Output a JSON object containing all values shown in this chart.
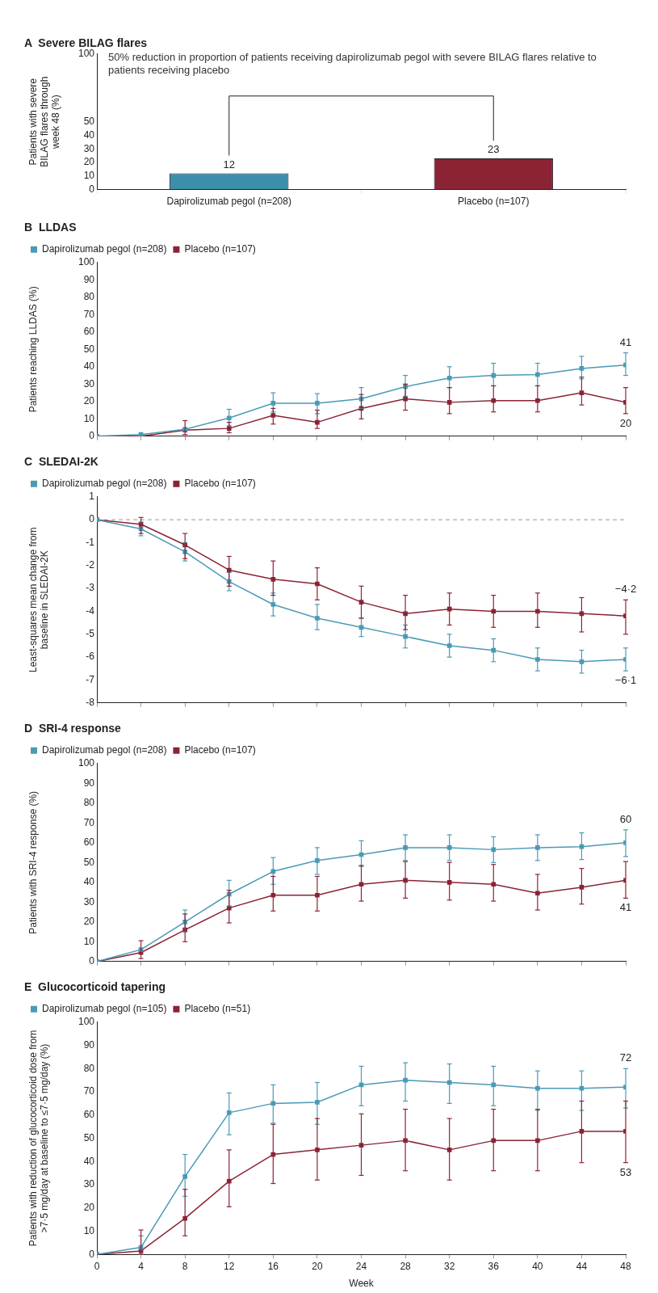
{
  "chart_data": [
    {
      "type": "bar",
      "title": "A  Severe BILAG flares",
      "ylabel": "Patients with severe BILAG flares through week 48 (%)",
      "categories": [
        "Dapirolizumab pegol (n=208)",
        "Placebo (n=107)"
      ],
      "values": [
        12,
        23
      ],
      "colors": [
        "#3b8fab",
        "#8b2335"
      ],
      "data_labels": true,
      "ylim": [
        0,
        100
      ],
      "yticks": [
        0,
        10,
        20,
        30,
        40,
        50,
        100
      ],
      "grid": false,
      "legend": false,
      "annotations": [
        "50% reduction in proportion of patients receiving dapirolizumab pegol with severe BILAG flares relative to patients receiving placebo"
      ]
    },
    {
      "type": "line",
      "title": "B  LLDAS",
      "ylabel": "Patients reaching LLDAS (%)",
      "x": [
        0,
        4,
        8,
        12,
        16,
        20,
        24,
        28,
        32,
        36,
        40,
        44,
        48
      ],
      "xlim": [
        0,
        48
      ],
      "xticks": [
        0,
        4,
        8,
        12,
        16,
        20,
        24,
        28,
        32,
        36,
        40,
        44,
        48
      ],
      "ylim": [
        0,
        100
      ],
      "yticks": [
        0,
        10,
        20,
        30,
        40,
        50,
        60,
        70,
        80,
        90,
        100
      ],
      "tick_labels": "y",
      "grid": false,
      "legend": "top left",
      "marker": "square",
      "line_style": "solid",
      "series": [
        {
          "name": "Dapirolizumab pegol (n=208)",
          "color": "#4a9ab5",
          "values": [
            0,
            1,
            4,
            10.5,
            19,
            19,
            21.5,
            28.5,
            33.5,
            35,
            35.5,
            39,
            41
          ],
          "errors": [
            null,
            null,
            null,
            [
              6,
              15.5
            ],
            [
              14,
              25
            ],
            [
              13,
              24.5
            ],
            [
              16,
              28
            ],
            [
              23,
              35
            ],
            [
              28,
              40
            ],
            [
              29,
              42
            ],
            [
              29,
              42
            ],
            [
              33,
              46
            ],
            [
              35,
              48
            ]
          ],
          "value_labels": [
            null,
            null,
            null,
            null,
            null,
            null,
            null,
            null,
            null,
            null,
            null,
            null,
            "41"
          ]
        },
        {
          "name": "Placebo (n=107)",
          "color": "#8b2335",
          "values": [
            0,
            0,
            3.5,
            4.5,
            12,
            8,
            16,
            21.5,
            19.5,
            20.5,
            20.5,
            25,
            19.5
          ],
          "errors": [
            null,
            null,
            [
              1,
              9
            ],
            [
              2,
              8
            ],
            [
              7,
              16
            ],
            [
              4.5,
              15
            ],
            [
              10,
              24
            ],
            [
              15,
              30
            ],
            [
              13,
              28
            ],
            [
              14,
              29
            ],
            [
              14,
              29
            ],
            [
              18,
              34
            ],
            [
              13,
              28
            ]
          ],
          "value_labels": [
            null,
            null,
            null,
            null,
            null,
            null,
            null,
            null,
            null,
            null,
            null,
            null,
            "20"
          ]
        }
      ]
    },
    {
      "type": "line",
      "title": "C  SLEDAI-2K",
      "ylabel": "Least-squares mean change from baseline in SLEDAI-2K",
      "x": [
        0,
        4,
        8,
        12,
        16,
        20,
        24,
        28,
        32,
        36,
        40,
        44,
        48
      ],
      "xlim": [
        0,
        48
      ],
      "xticks": [
        0,
        4,
        8,
        12,
        16,
        20,
        24,
        28,
        32,
        36,
        40,
        44,
        48
      ],
      "ylim": [
        -8,
        1
      ],
      "yticks": [
        -8,
        -7,
        -6,
        -5,
        -4,
        -3,
        -2,
        -1,
        0,
        1
      ],
      "tick_labels": "y",
      "grid": false,
      "legend": "top left",
      "marker": "square",
      "line_style": "solid",
      "ref_lines": [
        {
          "axis": "y",
          "value": 0,
          "color": "#999999",
          "line_style": "dashed"
        }
      ],
      "series": [
        {
          "name": "Dapirolizumab pegol (n=208)",
          "color": "#4a9ab5",
          "values": [
            0,
            -0.4,
            -1.4,
            -2.7,
            -3.7,
            -4.3,
            -4.7,
            -5.1,
            -5.5,
            -5.7,
            -6.1,
            -6.2,
            -6.1
          ],
          "errors": [
            null,
            [
              -0.7,
              -0.1
            ],
            [
              -1.8,
              -1.0
            ],
            [
              -3.1,
              -2.3
            ],
            [
              -4.2,
              -3.2
            ],
            [
              -4.8,
              -3.7
            ],
            [
              -5.1,
              -4.3
            ],
            [
              -5.6,
              -4.6
            ],
            [
              -6.0,
              -5.0
            ],
            [
              -6.2,
              -5.2
            ],
            [
              -6.6,
              -5.6
            ],
            [
              -6.7,
              -5.7
            ],
            [
              -6.6,
              -5.6
            ]
          ],
          "value_labels": [
            null,
            null,
            null,
            null,
            null,
            null,
            null,
            null,
            null,
            null,
            null,
            null,
            "−6·1"
          ]
        },
        {
          "name": "Placebo (n=107)",
          "color": "#8b2335",
          "values": [
            0,
            -0.2,
            -1.1,
            -2.2,
            -2.6,
            -2.8,
            -3.6,
            -4.1,
            -3.9,
            -4.0,
            -4.0,
            -4.1,
            -4.2
          ],
          "errors": [
            null,
            [
              -0.6,
              0.1
            ],
            [
              -1.7,
              -0.6
            ],
            [
              -2.9,
              -1.6
            ],
            [
              -3.3,
              -1.8
            ],
            [
              -3.5,
              -2.1
            ],
            [
              -4.3,
              -2.9
            ],
            [
              -4.8,
              -3.3
            ],
            [
              -4.6,
              -3.2
            ],
            [
              -4.7,
              -3.3
            ],
            [
              -4.7,
              -3.2
            ],
            [
              -4.9,
              -3.4
            ],
            [
              -5.0,
              -3.5
            ]
          ],
          "value_labels": [
            null,
            null,
            null,
            null,
            null,
            null,
            null,
            null,
            null,
            null,
            null,
            null,
            "−4·2"
          ]
        }
      ]
    },
    {
      "type": "line",
      "title": "D  SRI-4 response",
      "ylabel": "Patients with SRI-4 response (%)",
      "x": [
        0,
        4,
        8,
        12,
        16,
        20,
        24,
        28,
        32,
        36,
        40,
        44,
        48
      ],
      "xlim": [
        0,
        48
      ],
      "xticks": [
        0,
        4,
        8,
        12,
        16,
        20,
        24,
        28,
        32,
        36,
        40,
        44,
        48
      ],
      "ylim": [
        0,
        100
      ],
      "yticks": [
        0,
        10,
        20,
        30,
        40,
        50,
        60,
        70,
        80,
        90,
        100
      ],
      "tick_labels": "y",
      "grid": false,
      "legend": "top left",
      "marker": "square",
      "line_style": "solid",
      "series": [
        {
          "name": "Dapirolizumab pegol (n=208)",
          "color": "#4a9ab5",
          "values": [
            0,
            6,
            20,
            34,
            45.5,
            51,
            54,
            57.5,
            57.5,
            56.5,
            57.5,
            58,
            60
          ],
          "errors": [
            null,
            null,
            [
              15,
              26
            ],
            [
              28,
              41
            ],
            [
              39,
              52.5
            ],
            [
              44,
              57.5
            ],
            [
              48,
              61
            ],
            [
              51,
              64
            ],
            [
              51,
              64
            ],
            [
              50,
              63
            ],
            [
              51,
              64
            ],
            [
              51.5,
              65
            ],
            [
              53,
              66.5
            ]
          ],
          "value_labels": [
            null,
            null,
            null,
            null,
            null,
            null,
            null,
            null,
            null,
            null,
            null,
            null,
            "60"
          ]
        },
        {
          "name": "Placebo (n=107)",
          "color": "#8b2335",
          "values": [
            0,
            4.5,
            16,
            27,
            33.5,
            33.5,
            39,
            41,
            40,
            39,
            34.5,
            37.5,
            41
          ],
          "errors": [
            null,
            [
              1.5,
              10.5
            ],
            [
              10,
              24
            ],
            [
              19.5,
              36
            ],
            [
              25.5,
              43
            ],
            [
              25.5,
              43
            ],
            [
              30.5,
              48.5
            ],
            [
              32,
              50.5
            ],
            [
              31,
              50
            ],
            [
              30.5,
              49
            ],
            [
              26,
              44
            ],
            [
              29,
              47
            ],
            [
              32,
              50.5
            ]
          ],
          "value_labels": [
            null,
            null,
            null,
            null,
            null,
            null,
            null,
            null,
            null,
            null,
            null,
            null,
            "41"
          ]
        }
      ]
    },
    {
      "type": "line",
      "title": "E  Glucocorticoid tapering",
      "ylabel": "Patients with reduction of glucocorticoid dose from >7·5 mg/day at baseline to ≤7·5 mg/day (%)",
      "xlabel": "Week",
      "x": [
        0,
        4,
        8,
        12,
        16,
        20,
        24,
        28,
        32,
        36,
        40,
        44,
        48
      ],
      "xlim": [
        0,
        48
      ],
      "xticks": [
        0,
        4,
        8,
        12,
        16,
        20,
        24,
        28,
        32,
        36,
        40,
        44,
        48
      ],
      "ylim": [
        0,
        100
      ],
      "yticks": [
        0,
        10,
        20,
        30,
        40,
        50,
        60,
        70,
        80,
        90,
        100
      ],
      "grid": false,
      "legend": "top left",
      "marker": "square",
      "line_style": "solid",
      "series": [
        {
          "name": "Dapirolizumab pegol (n=105)",
          "color": "#4a9ab5",
          "values": [
            0,
            3,
            33.5,
            61,
            65,
            65.5,
            73,
            75,
            74,
            73,
            71.5,
            71.5,
            72
          ],
          "errors": [
            null,
            [
              0,
              8
            ],
            [
              25,
              43
            ],
            [
              51.5,
              69.5
            ],
            [
              56.5,
              73
            ],
            [
              56,
              74
            ],
            [
              64,
              81
            ],
            [
              66,
              82.5
            ],
            [
              65,
              82
            ],
            [
              64,
              81
            ],
            [
              62,
              79
            ],
            [
              62,
              79
            ],
            [
              63,
              80
            ]
          ],
          "value_labels": [
            null,
            null,
            null,
            null,
            null,
            null,
            null,
            null,
            null,
            null,
            null,
            null,
            "72"
          ]
        },
        {
          "name": "Placebo (n=51)",
          "color": "#8b2335",
          "values": [
            0,
            1.5,
            15.5,
            31.5,
            43,
            45,
            47,
            49,
            45,
            49,
            49,
            53,
            53
          ],
          "errors": [
            null,
            [
              0,
              10.5
            ],
            [
              8,
              28
            ],
            [
              20.5,
              45
            ],
            [
              30.5,
              56
            ],
            [
              32,
              58.5
            ],
            [
              34,
              60.5
            ],
            [
              36,
              62.5
            ],
            [
              32,
              58.5
            ],
            [
              36,
              62.5
            ],
            [
              36,
              62.5
            ],
            [
              39.5,
              66
            ],
            [
              39.5,
              66
            ]
          ],
          "value_labels": [
            null,
            null,
            null,
            null,
            null,
            null,
            null,
            null,
            null,
            null,
            null,
            null,
            "53"
          ]
        }
      ]
    }
  ]
}
